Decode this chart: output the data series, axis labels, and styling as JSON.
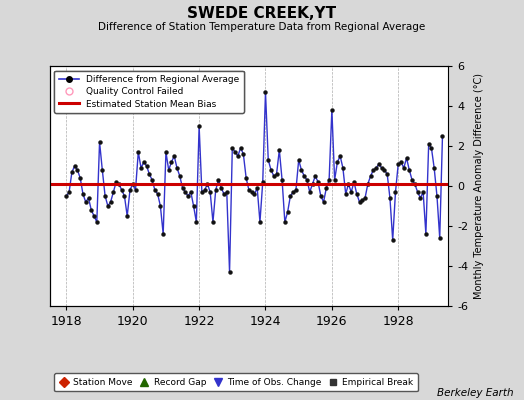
{
  "title": "SWEDE CREEK,YT",
  "subtitle": "Difference of Station Temperature Data from Regional Average",
  "ylabel": "Monthly Temperature Anomaly Difference (°C)",
  "xlabel_ticks": [
    1918,
    1920,
    1922,
    1924,
    1926,
    1928
  ],
  "ylim": [
    -6,
    6
  ],
  "xlim": [
    1917.5,
    1929.5
  ],
  "bias": 0.1,
  "background_color": "#d8d8d8",
  "plot_bg_color": "#ffffff",
  "line_color": "#3333cc",
  "marker_color": "#111111",
  "bias_color": "#cc0000",
  "credit": "Berkeley Earth",
  "data_x": [
    1918.0,
    1918.083,
    1918.167,
    1918.25,
    1918.333,
    1918.417,
    1918.5,
    1918.583,
    1918.667,
    1918.75,
    1918.833,
    1918.917,
    1919.0,
    1919.083,
    1919.167,
    1919.25,
    1919.333,
    1919.417,
    1919.5,
    1919.583,
    1919.667,
    1919.75,
    1919.833,
    1919.917,
    1920.0,
    1920.083,
    1920.167,
    1920.25,
    1920.333,
    1920.417,
    1920.5,
    1920.583,
    1920.667,
    1920.75,
    1920.833,
    1920.917,
    1921.0,
    1921.083,
    1921.167,
    1921.25,
    1921.333,
    1921.417,
    1921.5,
    1921.583,
    1921.667,
    1921.75,
    1921.833,
    1921.917,
    1922.0,
    1922.083,
    1922.167,
    1922.25,
    1922.333,
    1922.417,
    1922.5,
    1922.583,
    1922.667,
    1922.75,
    1922.833,
    1922.917,
    1923.0,
    1923.083,
    1923.167,
    1923.25,
    1923.333,
    1923.417,
    1923.5,
    1923.583,
    1923.667,
    1923.75,
    1923.833,
    1923.917,
    1924.0,
    1924.083,
    1924.167,
    1924.25,
    1924.333,
    1924.417,
    1924.5,
    1924.583,
    1924.667,
    1924.75,
    1924.833,
    1924.917,
    1925.0,
    1925.083,
    1925.167,
    1925.25,
    1925.333,
    1925.417,
    1925.5,
    1925.583,
    1925.667,
    1925.75,
    1925.833,
    1925.917,
    1926.0,
    1926.083,
    1926.167,
    1926.25,
    1926.333,
    1926.417,
    1926.5,
    1926.583,
    1926.667,
    1926.75,
    1926.833,
    1926.917,
    1927.0,
    1927.083,
    1927.167,
    1927.25,
    1927.333,
    1927.417,
    1927.5,
    1927.583,
    1927.667,
    1927.75,
    1927.833,
    1927.917,
    1928.0,
    1928.083,
    1928.167,
    1928.25,
    1928.333,
    1928.417,
    1928.5,
    1928.583,
    1928.667,
    1928.75,
    1928.833,
    1928.917,
    1929.0,
    1929.083,
    1929.167,
    1929.25,
    1929.333
  ],
  "data_y": [
    -0.5,
    -0.3,
    0.7,
    1.0,
    0.8,
    0.4,
    -0.4,
    -0.8,
    -0.6,
    -1.2,
    -1.5,
    -1.8,
    2.2,
    0.8,
    -0.5,
    -1.0,
    -0.8,
    -0.3,
    0.2,
    0.1,
    -0.2,
    -0.5,
    -1.5,
    -0.2,
    0.1,
    -0.2,
    1.7,
    0.9,
    1.2,
    1.0,
    0.6,
    0.3,
    -0.2,
    -0.4,
    -1.0,
    -2.4,
    1.7,
    0.8,
    1.2,
    1.5,
    0.9,
    0.5,
    -0.1,
    -0.3,
    -0.5,
    -0.3,
    -1.0,
    -1.8,
    3.0,
    -0.3,
    -0.2,
    0.1,
    -0.3,
    -1.8,
    -0.2,
    0.3,
    -0.1,
    -0.4,
    -0.3,
    -4.3,
    1.9,
    1.7,
    1.5,
    1.9,
    1.6,
    0.4,
    -0.2,
    -0.3,
    -0.4,
    -0.1,
    -1.8,
    0.2,
    4.7,
    1.3,
    0.8,
    0.5,
    0.6,
    1.8,
    0.3,
    -1.8,
    -1.3,
    -0.5,
    -0.3,
    -0.2,
    1.3,
    0.8,
    0.5,
    0.3,
    -0.3,
    0.1,
    0.5,
    0.2,
    -0.5,
    -0.8,
    -0.1,
    0.3,
    3.8,
    0.3,
    1.2,
    1.5,
    0.9,
    -0.4,
    0.1,
    -0.3,
    0.2,
    -0.4,
    -0.8,
    -0.7,
    -0.6,
    0.1,
    0.5,
    0.8,
    0.9,
    1.1,
    0.9,
    0.8,
    0.6,
    -0.6,
    -2.7,
    -0.3,
    1.1,
    1.2,
    0.9,
    1.4,
    0.8,
    0.3,
    0.1,
    -0.3,
    -0.6,
    -0.3,
    -2.4,
    2.1,
    1.9,
    0.9,
    -0.5,
    -2.6,
    2.5
  ]
}
